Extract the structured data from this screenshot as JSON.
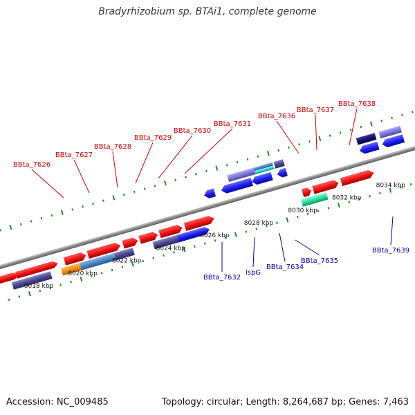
{
  "title": "Bradyrhizobium sp. BTAi1, complete genome",
  "footer": {
    "accession": "Accession: NC_009485",
    "topology": "Topology: circular; Length: 8,264,687 bp; Genes: 7,463"
  },
  "colors": {
    "forward_cds": "#ee1111",
    "reverse_cds": "#1a1aee",
    "top_label": "#cc0000",
    "bottom_label": "#0000aa",
    "backbone": "#888888",
    "tick": "#228822"
  },
  "axis": {
    "unit": "kbp",
    "ticks_kbp": [
      8018,
      8020,
      8022,
      8024,
      8026,
      8028,
      8030,
      8032,
      8034
    ]
  },
  "genes": {
    "forward_labeled": [
      "BBta_7626",
      "BBta_7627",
      "BBta_7628",
      "BBta_7629",
      "BBta_7630",
      "BBta_7631",
      "BBta_7636",
      "BBta_7637",
      "BBta_7638"
    ],
    "reverse_labeled": [
      "BBta_7632",
      "ispG",
      "BBta_7634",
      "BBta_7635",
      "BBta_7639"
    ]
  }
}
